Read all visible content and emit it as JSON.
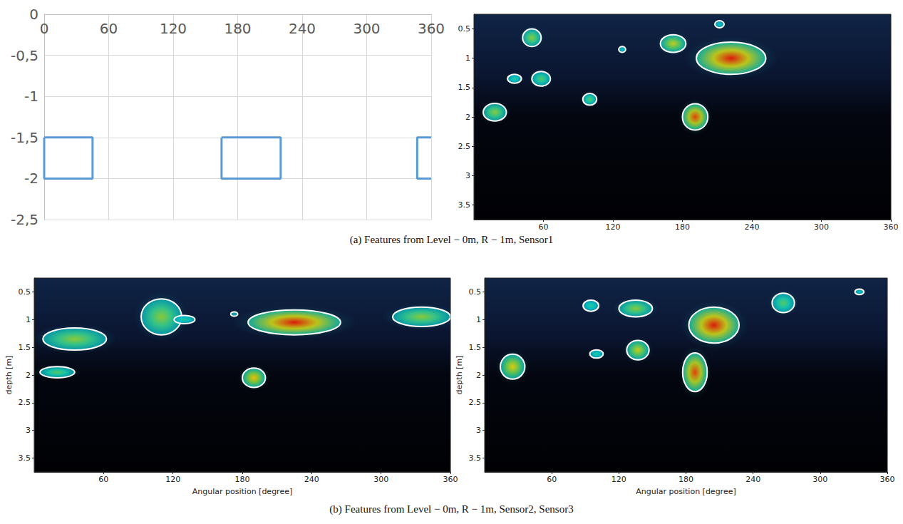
{
  "chart_data": [
    {
      "type": "line",
      "grid": true,
      "xlim": [
        0,
        360
      ],
      "xticks": [
        0,
        60,
        120,
        180,
        240,
        300,
        360
      ],
      "ylim": [
        -2.5,
        0
      ],
      "yticks": [
        {
          "value": -2.5,
          "label": "-2,5"
        },
        -2,
        {
          "value": -1.5,
          "label": "-1,5"
        },
        -1,
        {
          "value": -0.5,
          "label": "-0,5"
        },
        0
      ],
      "series": [
        {
          "color": "#5b9bd5",
          "x": [
            0,
            45,
            45,
            0,
            0
          ],
          "values": [
            -1.5,
            -1.5,
            -2,
            -2,
            -1.5
          ]
        },
        {
          "color": "#5b9bd5",
          "x": [
            165,
            220,
            220,
            165,
            165
          ],
          "values": [
            -1.5,
            -1.5,
            -2,
            -2,
            -1.5
          ]
        },
        {
          "color": "#5b9bd5",
          "x": [
            360,
            347,
            347,
            360
          ],
          "values": [
            -1.5,
            -1.5,
            -2,
            -2
          ]
        }
      ]
    },
    {
      "type": "contour",
      "xlim": [
        0,
        360
      ],
      "xticks": [
        60,
        120,
        180,
        240,
        300,
        360
      ],
      "ylim": [
        0.25,
        3.75
      ],
      "yticks": [
        0.5,
        1,
        1.5,
        2,
        2.5,
        3,
        3.5
      ],
      "features": [
        {
          "x": 50,
          "y": 0.65,
          "width": 16,
          "height": 0.3,
          "intensity": 0.6
        },
        {
          "x": 172,
          "y": 0.75,
          "width": 22,
          "height": 0.3,
          "intensity": 0.7
        },
        {
          "x": 212,
          "y": 0.42,
          "width": 8,
          "height": 0.12,
          "intensity": 0.3
        },
        {
          "x": 128,
          "y": 0.85,
          "width": 6,
          "height": 0.1,
          "intensity": 0.3
        },
        {
          "x": 222,
          "y": 1.0,
          "width": 60,
          "height": 0.55,
          "intensity": 1.0
        },
        {
          "x": 35,
          "y": 1.35,
          "width": 12,
          "height": 0.15,
          "intensity": 0.4
        },
        {
          "x": 58,
          "y": 1.35,
          "width": 16,
          "height": 0.25,
          "intensity": 0.5
        },
        {
          "x": 100,
          "y": 1.7,
          "width": 12,
          "height": 0.2,
          "intensity": 0.5
        },
        {
          "x": 18,
          "y": 1.92,
          "width": 20,
          "height": 0.3,
          "intensity": 0.6
        },
        {
          "x": 191,
          "y": 2.0,
          "width": 22,
          "height": 0.45,
          "intensity": 0.95
        }
      ]
    },
    {
      "type": "contour",
      "xlabel": "Angular position [degree]",
      "ylabel": "depth [m]",
      "xlim": [
        0,
        360
      ],
      "xticks": [
        60,
        120,
        180,
        240,
        300,
        360
      ],
      "ylim": [
        0.25,
        3.75
      ],
      "yticks": [
        0.5,
        1,
        1.5,
        2,
        2.5,
        3,
        3.5
      ],
      "features": [
        {
          "x": 35,
          "y": 1.35,
          "width": 55,
          "height": 0.4,
          "intensity": 0.6
        },
        {
          "x": 110,
          "y": 0.95,
          "width": 35,
          "height": 0.65,
          "intensity": 0.6
        },
        {
          "x": 130,
          "y": 1.0,
          "width": 18,
          "height": 0.15,
          "intensity": 0.4
        },
        {
          "x": 173,
          "y": 0.9,
          "width": 6,
          "height": 0.08,
          "intensity": 0.2
        },
        {
          "x": 225,
          "y": 1.05,
          "width": 80,
          "height": 0.45,
          "intensity": 1.0
        },
        {
          "x": 335,
          "y": 0.95,
          "width": 50,
          "height": 0.35,
          "intensity": 0.6
        },
        {
          "x": 20,
          "y": 1.95,
          "width": 30,
          "height": 0.2,
          "intensity": 0.5
        },
        {
          "x": 190,
          "y": 2.05,
          "width": 20,
          "height": 0.35,
          "intensity": 0.8
        }
      ]
    },
    {
      "type": "contour",
      "xlabel": "Angular position [degree]",
      "ylabel": "depth [m]",
      "xlim": [
        0,
        360
      ],
      "xticks": [
        60,
        120,
        180,
        240,
        300,
        360
      ],
      "ylim": [
        0.25,
        3.75
      ],
      "yticks": [
        0.5,
        1,
        1.5,
        2,
        2.5,
        3,
        3.5
      ],
      "features": [
        {
          "x": 95,
          "y": 0.75,
          "width": 14,
          "height": 0.2,
          "intensity": 0.4
        },
        {
          "x": 135,
          "y": 0.8,
          "width": 30,
          "height": 0.3,
          "intensity": 0.6
        },
        {
          "x": 267,
          "y": 0.7,
          "width": 20,
          "height": 0.35,
          "intensity": 0.5
        },
        {
          "x": 335,
          "y": 0.5,
          "width": 8,
          "height": 0.1,
          "intensity": 0.3
        },
        {
          "x": 205,
          "y": 1.1,
          "width": 45,
          "height": 0.65,
          "intensity": 1.0
        },
        {
          "x": 25,
          "y": 1.85,
          "width": 22,
          "height": 0.45,
          "intensity": 0.75
        },
        {
          "x": 100,
          "y": 1.62,
          "width": 12,
          "height": 0.15,
          "intensity": 0.4
        },
        {
          "x": 137,
          "y": 1.55,
          "width": 20,
          "height": 0.35,
          "intensity": 0.7
        },
        {
          "x": 188,
          "y": 1.95,
          "width": 22,
          "height": 0.7,
          "intensity": 0.95
        }
      ]
    }
  ],
  "captions": [
    "(a) Features from Level − 0m, R − 1m, Sensor1",
    "(b) Features from Level − 0m, R − 1m, Sensor2, Sensor3"
  ]
}
